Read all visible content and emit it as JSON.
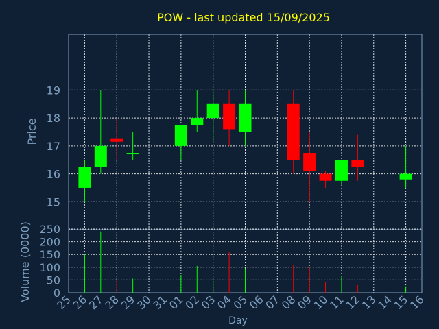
{
  "chart_data": {
    "type": "candlestick",
    "title": "POW - last updated 15/09/2025",
    "xlabel": "Day",
    "x_ticks": [
      "25",
      "26",
      "27",
      "28",
      "29",
      "30",
      "31",
      "01",
      "02",
      "03",
      "04",
      "05",
      "06",
      "07",
      "08",
      "09",
      "10",
      "11",
      "12",
      "13",
      "14",
      "15",
      "16"
    ],
    "colors": {
      "background": "#0f2035",
      "title": "#ffff00",
      "axis_text": "#7f9fbf",
      "grid": "#d9d9d9",
      "up": "#00ff00",
      "down": "#ff0000"
    },
    "price_panel": {
      "ylabel": "Price",
      "ylim": [
        14,
        21
      ],
      "y_ticks": [
        15,
        16,
        17,
        18,
        19
      ],
      "candles": [
        {
          "day": "26",
          "open": 15.5,
          "high": 16.5,
          "low": 15.0,
          "close": 16.25
        },
        {
          "day": "27",
          "open": 16.25,
          "high": 19.0,
          "low": 16.0,
          "close": 17.0
        },
        {
          "day": "28",
          "open": 17.25,
          "high": 18.0,
          "low": 16.5,
          "close": 17.15
        },
        {
          "day": "29",
          "open": 16.75,
          "high": 17.5,
          "low": 16.5,
          "close": 16.75
        },
        {
          "day": "01",
          "open": 17.0,
          "high": 17.75,
          "low": 16.5,
          "close": 17.75
        },
        {
          "day": "02",
          "open": 17.75,
          "high": 19.0,
          "low": 17.5,
          "close": 18.0
        },
        {
          "day": "03",
          "open": 18.0,
          "high": 19.0,
          "low": 17.15,
          "close": 18.5
        },
        {
          "day": "04",
          "open": 18.5,
          "high": 19.0,
          "low": 17.0,
          "close": 17.6
        },
        {
          "day": "05",
          "open": 17.5,
          "high": 19.0,
          "low": 17.0,
          "close": 18.5
        },
        {
          "day": "08",
          "open": 18.5,
          "high": 19.0,
          "low": 16.0,
          "close": 16.5
        },
        {
          "day": "09",
          "open": 16.75,
          "high": 17.5,
          "low": 15.0,
          "close": 16.1
        },
        {
          "day": "10",
          "open": 16.0,
          "high": 16.1,
          "low": 15.5,
          "close": 15.75
        },
        {
          "day": "11",
          "open": 15.75,
          "high": 16.5,
          "low": 15.6,
          "close": 16.5
        },
        {
          "day": "12",
          "open": 16.5,
          "high": 17.4,
          "low": 15.75,
          "close": 16.25
        },
        {
          "day": "15",
          "open": 15.8,
          "high": 17.0,
          "low": 15.5,
          "close": 16.0
        }
      ]
    },
    "volume_panel": {
      "ylabel": "Volume (0000)",
      "ylim": [
        0,
        250
      ],
      "y_ticks": [
        0,
        50,
        100,
        150,
        200,
        250
      ],
      "bars": [
        {
          "day": "26",
          "value": 150,
          "direction": "up"
        },
        {
          "day": "27",
          "value": 240,
          "direction": "up"
        },
        {
          "day": "28",
          "value": 50,
          "direction": "down"
        },
        {
          "day": "29",
          "value": 55,
          "direction": "up"
        },
        {
          "day": "01",
          "value": 70,
          "direction": "up"
        },
        {
          "day": "02",
          "value": 105,
          "direction": "up"
        },
        {
          "day": "03",
          "value": 45,
          "direction": "up"
        },
        {
          "day": "04",
          "value": 160,
          "direction": "down"
        },
        {
          "day": "05",
          "value": 95,
          "direction": "up"
        },
        {
          "day": "08",
          "value": 110,
          "direction": "down"
        },
        {
          "day": "09",
          "value": 100,
          "direction": "down"
        },
        {
          "day": "10",
          "value": 40,
          "direction": "down"
        },
        {
          "day": "11",
          "value": 65,
          "direction": "up"
        },
        {
          "day": "12",
          "value": 30,
          "direction": "down"
        },
        {
          "day": "15",
          "value": 25,
          "direction": "up"
        }
      ]
    }
  }
}
